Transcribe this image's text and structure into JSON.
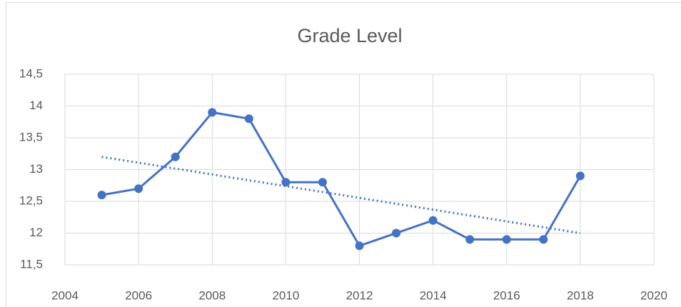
{
  "chart_data": {
    "type": "line",
    "title": "Grade Level",
    "x": [
      2005,
      2006,
      2007,
      2008,
      2009,
      2010,
      2011,
      2012,
      2013,
      2014,
      2015,
      2016,
      2017,
      2018
    ],
    "series": [
      {
        "color": "#4472c4",
        "values": [
          12.6,
          12.7,
          13.2,
          13.9,
          13.8,
          12.8,
          12.8,
          11.8,
          12.0,
          12.2,
          11.9,
          11.9,
          11.9,
          12.9
        ]
      }
    ],
    "trendline": {
      "x": [
        2005,
        2018
      ],
      "values": [
        13.2,
        12.0
      ],
      "color": "#4472c4"
    },
    "xlim": [
      2004,
      2020
    ],
    "xticks": [
      2004,
      2006,
      2008,
      2010,
      2012,
      2014,
      2016,
      2018,
      2020
    ],
    "ylim": [
      11.5,
      14.5
    ],
    "yticks": [
      {
        "value": 11.5,
        "label": "11,5"
      },
      12,
      {
        "value": 12.5,
        "label": "12,5"
      },
      13,
      {
        "value": 13.5,
        "label": "13,5"
      },
      14,
      {
        "value": 14.5,
        "label": "14,5"
      }
    ],
    "grid": true
  }
}
